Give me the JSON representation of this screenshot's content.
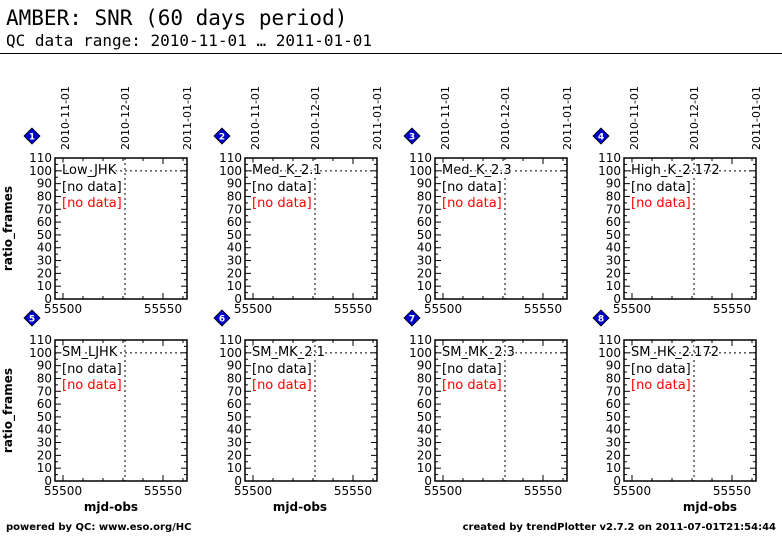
{
  "header": {
    "title": "AMBER: SNR (60 days period)",
    "subtitle": "QC data range: 2010-11-01 … 2011-01-01"
  },
  "footer": {
    "left": "powered by QC: www.eso.org/HC",
    "right": "created by trendPlotter v2.7.2 on 2011-07-01T21:54:44"
  },
  "colors": {
    "no_data_secondary": "#ff0000",
    "marker_fill": "#0000cc"
  },
  "chart_data": {
    "type": "scatter",
    "xlabel": "mjd-obs",
    "ylabel": "ratio_frames",
    "xlim": [
      55496,
      55562
    ],
    "ylim": [
      0,
      110
    ],
    "x_ticks": [
      55500,
      55550
    ],
    "y_ticks": [
      0,
      10,
      20,
      30,
      40,
      50,
      60,
      70,
      80,
      90,
      100,
      110
    ],
    "date_ticks": [
      {
        "label": "2010-11-01",
        "x": 55501
      },
      {
        "label": "2010-12-01",
        "x": 55531
      },
      {
        "label": "2011-01-01",
        "x": 55562
      }
    ],
    "current_date_x": 55531,
    "reference_line_y": 100,
    "no_data_label": "[no data]",
    "panels": [
      {
        "id": "1",
        "label": "Low_JHK"
      },
      {
        "id": "2",
        "label": "Med_K_2.1"
      },
      {
        "id": "3",
        "label": "Med_K_2.3"
      },
      {
        "id": "4",
        "label": "High_K_2.172"
      },
      {
        "id": "5",
        "label": "SM_LJHK"
      },
      {
        "id": "6",
        "label": "SM_MK_2.1"
      },
      {
        "id": "7",
        "label": "SM_MK_2.3"
      },
      {
        "id": "8",
        "label": "SM_HK_2.172"
      }
    ]
  }
}
